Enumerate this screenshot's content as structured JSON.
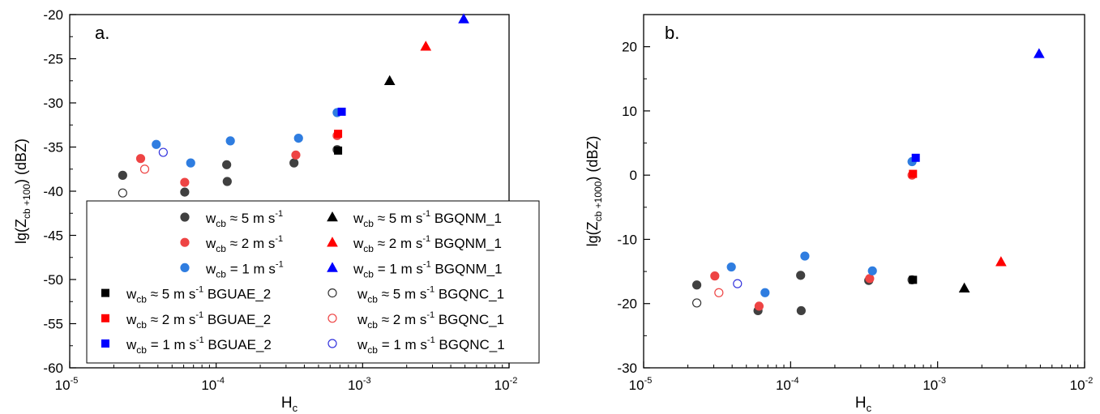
{
  "chart_data": [
    {
      "type": "scatter",
      "panel_label": "a.",
      "xlabel_main": "H",
      "xlabel_sub": "c",
      "ylabel_pre": "lg(Z",
      "ylabel_sub": "cb +100",
      "ylabel_post": ") (dBZ)",
      "xscale": "log",
      "xlim": [
        1e-05,
        0.01
      ],
      "ylim": [
        -60,
        -20
      ],
      "xticks": [
        {
          "value": 1e-05,
          "base": "10",
          "exp": "-5"
        },
        {
          "value": 0.0001,
          "base": "10",
          "exp": "-4"
        },
        {
          "value": 0.001,
          "base": "10",
          "exp": "-3"
        },
        {
          "value": 0.01,
          "base": "10",
          "exp": "-2"
        }
      ],
      "yticks": [
        "-60",
        "-55",
        "-50",
        "-45",
        "-40",
        "-35",
        "-30",
        "-25",
        "-20"
      ],
      "legend_position": "bottom-right",
      "series": [
        {
          "marker": "circle",
          "fill": "#404040",
          "stroke": "#404040",
          "points": [
            [
              2.3e-05,
              -38.2
            ],
            [
              6.1e-05,
              -40.1
            ],
            [
              0.000118,
              -37.0
            ],
            [
              0.000119,
              -38.9
            ],
            [
              0.00034,
              -36.8
            ],
            [
              0.00067,
              -35.3
            ]
          ]
        },
        {
          "marker": "circle",
          "fill": "#ee4444",
          "stroke": "#ee4444",
          "points": [
            [
              3.05e-05,
              -36.3
            ],
            [
              6.1e-05,
              -39.0
            ],
            [
              0.00035,
              -35.9
            ],
            [
              0.00067,
              -33.7
            ]
          ]
        },
        {
          "marker": "circle",
          "fill": "#2f7de0",
          "stroke": "#2f7de0",
          "points": [
            [
              3.9e-05,
              -34.7
            ],
            [
              6.7e-05,
              -36.8
            ],
            [
              0.000125,
              -34.3
            ],
            [
              0.000365,
              -34.0
            ],
            [
              0.00067,
              -31.1
            ]
          ]
        },
        {
          "marker": "square",
          "fill": "#000000",
          "stroke": "#000000",
          "points": [
            [
              0.00068,
              -35.4
            ]
          ]
        },
        {
          "marker": "square",
          "fill": "#ff0000",
          "stroke": "#ff0000",
          "points": [
            [
              0.00068,
              -33.5
            ]
          ]
        },
        {
          "marker": "square",
          "fill": "#0000ff",
          "stroke": "#0000ff",
          "points": [
            [
              0.00072,
              -31.0
            ]
          ]
        },
        {
          "marker": "triangle",
          "fill": "#000000",
          "stroke": "#000000",
          "points": [
            [
              0.00153,
              -27.5
            ]
          ]
        },
        {
          "marker": "triangle",
          "fill": "#ff0000",
          "stroke": "#ff0000",
          "points": [
            [
              0.0027,
              -23.6
            ]
          ]
        },
        {
          "marker": "triangle",
          "fill": "#0000ff",
          "stroke": "#0000ff",
          "points": [
            [
              0.0049,
              -20.5
            ]
          ]
        },
        {
          "marker": "circle-open",
          "fill": "none",
          "stroke": "#333333",
          "points": [
            [
              2.3e-05,
              -40.2
            ]
          ]
        },
        {
          "marker": "circle-open",
          "fill": "none",
          "stroke": "#ee4444",
          "points": [
            [
              3.25e-05,
              -37.5
            ]
          ]
        },
        {
          "marker": "circle-open",
          "fill": "none",
          "stroke": "#3333dd",
          "points": [
            [
              4.35e-05,
              -35.6
            ]
          ]
        }
      ],
      "legend": {
        "entries": [
          {
            "series": 0,
            "col": 0,
            "row": 0,
            "relation": "≈",
            "value": "5",
            "source": ""
          },
          {
            "series": 1,
            "col": 0,
            "row": 1,
            "relation": "≈",
            "value": "2",
            "source": ""
          },
          {
            "series": 2,
            "col": 0,
            "row": 2,
            "relation": "=",
            "value": "1",
            "source": ""
          },
          {
            "series": 3,
            "col": 0,
            "row": 3,
            "relation": "≈",
            "value": "5",
            "source": "BGUAE_2"
          },
          {
            "series": 4,
            "col": 0,
            "row": 4,
            "relation": "≈",
            "value": "2",
            "source": "BGUAE_2"
          },
          {
            "series": 5,
            "col": 0,
            "row": 5,
            "relation": "=",
            "value": "1",
            "source": "BGUAE_2"
          },
          {
            "series": 6,
            "col": 1,
            "row": 0,
            "relation": "≈",
            "value": "5",
            "source": "BGQNM_1"
          },
          {
            "series": 7,
            "col": 1,
            "row": 1,
            "relation": "≈",
            "value": "2",
            "source": "BGQNM_1"
          },
          {
            "series": 8,
            "col": 1,
            "row": 2,
            "relation": "=",
            "value": "1",
            "source": "BGQNM_1"
          },
          {
            "series": 9,
            "col": 1,
            "row": 3,
            "relation": "≈",
            "value": "5",
            "source": "BGQNC_1"
          },
          {
            "series": 10,
            "col": 1,
            "row": 4,
            "relation": "≈",
            "value": "2",
            "source": "BGQNC_1"
          },
          {
            "series": 11,
            "col": 1,
            "row": 5,
            "relation": "=",
            "value": "1",
            "source": "BGQNC_1"
          }
        ]
      }
    },
    {
      "type": "scatter",
      "panel_label": "b.",
      "xlabel_main": "H",
      "xlabel_sub": "c",
      "ylabel_pre": "lg(Z",
      "ylabel_sub": "cb +1000",
      "ylabel_post": ") (dBZ)",
      "xscale": "log",
      "xlim": [
        1e-05,
        0.01
      ],
      "ylim": [
        -30,
        25
      ],
      "xticks": [
        {
          "value": 1e-05,
          "base": "10",
          "exp": "-5"
        },
        {
          "value": 0.0001,
          "base": "10",
          "exp": "-4"
        },
        {
          "value": 0.001,
          "base": "10",
          "exp": "-3"
        },
        {
          "value": 0.01,
          "base": "10",
          "exp": "-2"
        }
      ],
      "yticks": [
        "-30",
        "-20",
        "-10",
        "0",
        "10",
        "20"
      ],
      "series": [
        {
          "marker": "circle",
          "fill": "#404040",
          "stroke": "#404040",
          "points": [
            [
              2.3e-05,
              -17.1
            ],
            [
              6e-05,
              -21.1
            ],
            [
              0.000117,
              -15.6
            ],
            [
              0.000118,
              -21.1
            ],
            [
              0.00034,
              -16.4
            ],
            [
              0.00067,
              -16.3
            ]
          ]
        },
        {
          "marker": "circle",
          "fill": "#ee4444",
          "stroke": "#ee4444",
          "points": [
            [
              3.05e-05,
              -15.7
            ],
            [
              6.1e-05,
              -20.4
            ],
            [
              0.000345,
              -16.1
            ],
            [
              0.00067,
              0.0
            ]
          ]
        },
        {
          "marker": "circle",
          "fill": "#2f7de0",
          "stroke": "#2f7de0",
          "points": [
            [
              3.95e-05,
              -14.3
            ],
            [
              6.7e-05,
              -18.3
            ],
            [
              0.000125,
              -12.6
            ],
            [
              0.00036,
              -14.9
            ],
            [
              0.00067,
              2.1
            ]
          ]
        },
        {
          "marker": "square",
          "fill": "#000000",
          "stroke": "#000000",
          "points": [
            [
              0.00068,
              -16.3
            ]
          ]
        },
        {
          "marker": "square",
          "fill": "#ff0000",
          "stroke": "#ff0000",
          "points": [
            [
              0.00068,
              0.2
            ]
          ]
        },
        {
          "marker": "square",
          "fill": "#0000ff",
          "stroke": "#0000ff",
          "points": [
            [
              0.00071,
              2.7
            ]
          ]
        },
        {
          "marker": "triangle",
          "fill": "#000000",
          "stroke": "#000000",
          "points": [
            [
              0.00152,
              -17.6
            ]
          ]
        },
        {
          "marker": "triangle",
          "fill": "#ff0000",
          "stroke": "#ff0000",
          "points": [
            [
              0.0027,
              -13.5
            ]
          ]
        },
        {
          "marker": "triangle",
          "fill": "#0000ff",
          "stroke": "#0000ff",
          "points": [
            [
              0.0049,
              18.9
            ]
          ]
        },
        {
          "marker": "circle-open",
          "fill": "none",
          "stroke": "#333333",
          "points": [
            [
              2.3e-05,
              -19.9
            ]
          ]
        },
        {
          "marker": "circle-open",
          "fill": "none",
          "stroke": "#ee4444",
          "points": [
            [
              3.25e-05,
              -18.3
            ]
          ]
        },
        {
          "marker": "circle-open",
          "fill": "none",
          "stroke": "#3333dd",
          "points": [
            [
              4.35e-05,
              -16.9
            ]
          ]
        }
      ]
    }
  ],
  "legend_text": {
    "w_main": "w",
    "w_sub": "cb",
    "unit_main": "m s",
    "unit_exp": "-1"
  }
}
